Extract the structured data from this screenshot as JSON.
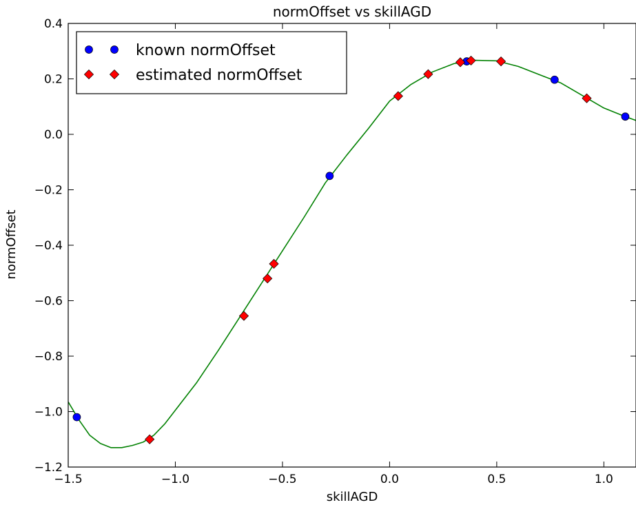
{
  "chart_data": {
    "type": "scatter",
    "title": "normOffset vs skillAGD",
    "xlabel": "skillAGD",
    "ylabel": "normOffset",
    "xlim": [
      -1.5,
      1.15
    ],
    "ylim": [
      -1.2,
      0.4
    ],
    "xticks": [
      -1.5,
      -1.0,
      -0.5,
      0.0,
      0.5,
      1.0
    ],
    "xtick_labels": [
      "−1.5",
      "−1.0",
      "−0.5",
      "0.0",
      "0.5",
      "1.0"
    ],
    "yticks": [
      -1.2,
      -1.0,
      -0.8,
      -0.6,
      -0.4,
      -0.2,
      0.0,
      0.2,
      0.4
    ],
    "ytick_labels": [
      "−1.2",
      "−1.0",
      "−0.8",
      "−0.6",
      "−0.4",
      "−0.2",
      "0.0",
      "0.2",
      "0.4"
    ],
    "grid": false,
    "legend_position": "top-left",
    "series": [
      {
        "name": "known normOffset",
        "marker": "circle",
        "color": "#0000ff",
        "points": [
          {
            "x": -1.46,
            "y": -1.02
          },
          {
            "x": -0.28,
            "y": -0.15
          },
          {
            "x": 0.36,
            "y": 0.263
          },
          {
            "x": 0.77,
            "y": 0.197
          },
          {
            "x": 1.1,
            "y": 0.064
          }
        ]
      },
      {
        "name": "estimated normOffset",
        "marker": "diamond",
        "color": "#ff0000",
        "points": [
          {
            "x": -1.12,
            "y": -1.1
          },
          {
            "x": -0.68,
            "y": -0.655
          },
          {
            "x": -0.57,
            "y": -0.52
          },
          {
            "x": -0.54,
            "y": -0.467
          },
          {
            "x": 0.04,
            "y": 0.138
          },
          {
            "x": 0.18,
            "y": 0.217
          },
          {
            "x": 0.33,
            "y": 0.26
          },
          {
            "x": 0.38,
            "y": 0.266
          },
          {
            "x": 0.52,
            "y": 0.263
          },
          {
            "x": 0.92,
            "y": 0.13
          }
        ]
      },
      {
        "type": "line",
        "color": "#008000",
        "points": [
          {
            "x": -1.5,
            "y": -0.965
          },
          {
            "x": -1.45,
            "y": -1.03
          },
          {
            "x": -1.4,
            "y": -1.085
          },
          {
            "x": -1.35,
            "y": -1.115
          },
          {
            "x": -1.3,
            "y": -1.13
          },
          {
            "x": -1.25,
            "y": -1.13
          },
          {
            "x": -1.2,
            "y": -1.122
          },
          {
            "x": -1.15,
            "y": -1.11
          },
          {
            "x": -1.1,
            "y": -1.085
          },
          {
            "x": -1.05,
            "y": -1.045
          },
          {
            "x": -1.0,
            "y": -0.995
          },
          {
            "x": -0.9,
            "y": -0.895
          },
          {
            "x": -0.8,
            "y": -0.78
          },
          {
            "x": -0.7,
            "y": -0.66
          },
          {
            "x": -0.6,
            "y": -0.54
          },
          {
            "x": -0.5,
            "y": -0.42
          },
          {
            "x": -0.4,
            "y": -0.3
          },
          {
            "x": -0.3,
            "y": -0.175
          },
          {
            "x": -0.2,
            "y": -0.075
          },
          {
            "x": -0.1,
            "y": 0.02
          },
          {
            "x": 0.0,
            "y": 0.12
          },
          {
            "x": 0.1,
            "y": 0.18
          },
          {
            "x": 0.2,
            "y": 0.225
          },
          {
            "x": 0.3,
            "y": 0.255
          },
          {
            "x": 0.4,
            "y": 0.267
          },
          {
            "x": 0.5,
            "y": 0.265
          },
          {
            "x": 0.6,
            "y": 0.245
          },
          {
            "x": 0.7,
            "y": 0.215
          },
          {
            "x": 0.8,
            "y": 0.185
          },
          {
            "x": 0.9,
            "y": 0.14
          },
          {
            "x": 1.0,
            "y": 0.095
          },
          {
            "x": 1.1,
            "y": 0.064
          },
          {
            "x": 1.15,
            "y": 0.05
          }
        ]
      }
    ]
  }
}
